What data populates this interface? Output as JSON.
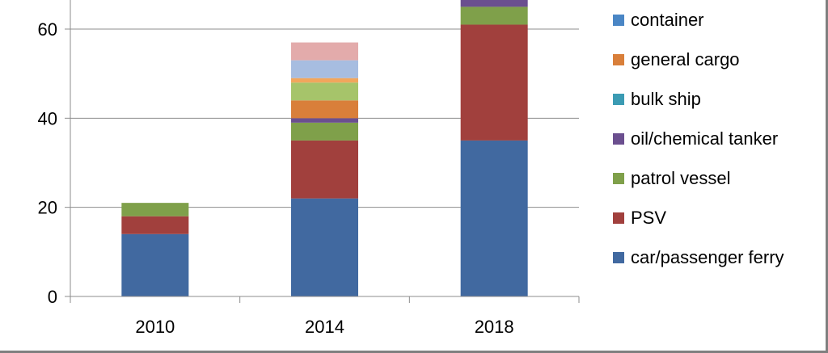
{
  "chart_data": {
    "type": "bar",
    "stacked": true,
    "categories": [
      "2010",
      "2014",
      "2018"
    ],
    "ylim": [
      0,
      68
    ],
    "yticks": [
      0,
      20,
      40,
      60
    ],
    "grid": true,
    "legend_position": "right",
    "series": [
      {
        "name": "car/passenger ferry",
        "color": "#4169a0",
        "values": [
          14,
          22,
          35
        ]
      },
      {
        "name": "PSV",
        "color": "#a1403d",
        "values": [
          4,
          13,
          26
        ]
      },
      {
        "name": "patrol vessel",
        "color": "#7fa04a",
        "values": [
          3,
          4,
          4
        ]
      },
      {
        "name": "oil/chemical tanker",
        "color": "#6b4f8f",
        "values": [
          0,
          1,
          3
        ]
      },
      {
        "name": "bulk ship",
        "color": "#3b9bb3",
        "values": [
          0,
          0,
          0
        ]
      },
      {
        "name": "general cargo",
        "color": "#d97f3a",
        "values": [
          0,
          4,
          0
        ]
      },
      {
        "name": "container",
        "color": "#4a86c5",
        "values": [
          0,
          0,
          0
        ]
      },
      {
        "name": "",
        "color": "#a6c46a",
        "values": [
          0,
          4,
          0
        ]
      },
      {
        "name": "",
        "color": "#f2a65c",
        "values": [
          0,
          1,
          0
        ]
      },
      {
        "name": "",
        "color": "#a7bde0",
        "values": [
          0,
          4,
          0
        ]
      },
      {
        "name": "",
        "color": "#e3abab",
        "values": [
          0,
          4,
          0
        ]
      }
    ]
  },
  "legend": [
    {
      "label": "container",
      "color": "#4a86c5"
    },
    {
      "label": "general cargo",
      "color": "#d97f3a"
    },
    {
      "label": "bulk ship",
      "color": "#3b9bb3"
    },
    {
      "label": "oil/chemical tanker",
      "color": "#6b4f8f"
    },
    {
      "label": "patrol vessel",
      "color": "#7fa04a"
    },
    {
      "label": "PSV",
      "color": "#a1403d"
    },
    {
      "label": "car/passenger ferry",
      "color": "#4169a0"
    }
  ]
}
